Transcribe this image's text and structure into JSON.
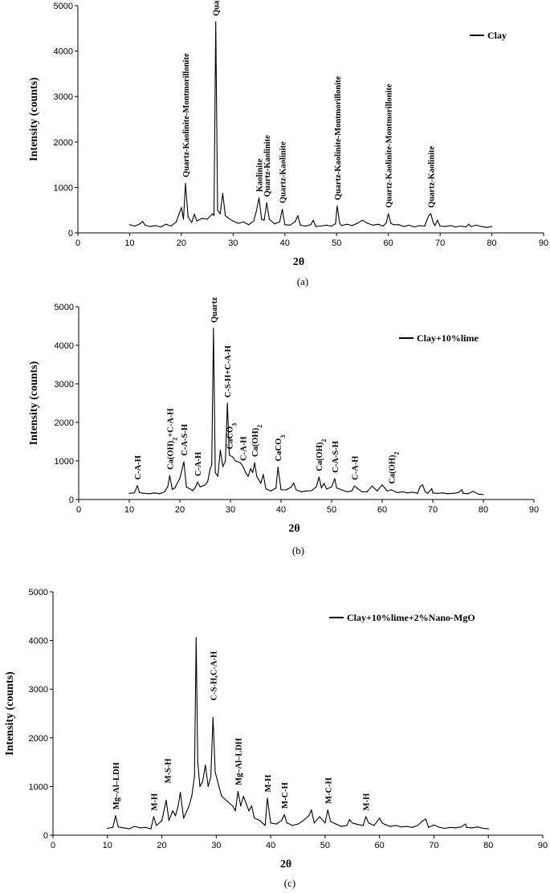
{
  "chart_data": [
    {
      "type": "line",
      "panel_caption": "(a)",
      "xlabel": "2θ",
      "ylabel": "Intensity (counts)",
      "xlim": [
        0,
        90
      ],
      "ylim": [
        0,
        5000
      ],
      "xticks": [
        0,
        10,
        20,
        30,
        40,
        50,
        60,
        70,
        80,
        90
      ],
      "yticks": [
        0,
        1000,
        2000,
        3000,
        4000,
        5000
      ],
      "legend_position": "top-right",
      "grid": false,
      "series": [
        {
          "name": "Clay",
          "x": [
            10,
            11,
            12,
            12.5,
            13,
            14,
            15,
            16,
            17,
            18,
            19,
            19.5,
            20,
            20.4,
            20.8,
            21.3,
            22,
            22.5,
            23,
            24,
            25,
            26,
            26.3,
            26.65,
            27,
            27.5,
            28,
            28.5,
            29,
            30,
            31,
            32,
            33,
            34,
            34.5,
            35,
            35.5,
            36,
            36.5,
            37,
            38,
            39,
            39.5,
            40,
            41,
            42,
            42.5,
            43,
            44,
            45,
            45.5,
            46,
            47,
            48,
            49,
            49.8,
            50.1,
            50.6,
            51,
            52,
            53,
            54,
            55,
            56,
            57,
            58,
            59,
            59.6,
            60,
            60.5,
            61,
            62,
            63,
            64,
            65,
            66,
            67,
            67.8,
            68.2,
            68.7,
            69,
            69.5,
            70,
            71,
            72,
            73,
            74,
            75,
            75.5,
            76,
            77,
            78,
            79,
            80
          ],
          "y": [
            180,
            150,
            200,
            250,
            170,
            140,
            160,
            130,
            190,
            150,
            240,
            400,
            560,
            300,
            1090,
            350,
            230,
            410,
            260,
            320,
            300,
            420,
            380,
            4640,
            500,
            420,
            870,
            380,
            330,
            260,
            210,
            240,
            180,
            260,
            480,
            770,
            300,
            280,
            660,
            300,
            200,
            240,
            520,
            180,
            170,
            250,
            380,
            170,
            150,
            180,
            280,
            140,
            150,
            170,
            150,
            200,
            590,
            210,
            160,
            190,
            160,
            210,
            280,
            210,
            170,
            190,
            150,
            220,
            420,
            210,
            180,
            180,
            140,
            170,
            130,
            160,
            150,
            380,
            420,
            220,
            160,
            280,
            150,
            140,
            160,
            130,
            150,
            130,
            190,
            140,
            170,
            140,
            120,
            140
          ]
        }
      ],
      "annotations": [
        {
          "text": "Quartz-Kaolinite-Montmorillonite",
          "x": 20.8,
          "y": 1150
        },
        {
          "text": "Quartz",
          "x": 26.65,
          "y": 4700
        },
        {
          "text": "Kaolinite",
          "x": 35.0,
          "y": 830
        },
        {
          "text": "Quartz-Kaolinite",
          "x": 36.5,
          "y": 720
        },
        {
          "text": "Quartz-Kaolinite",
          "x": 39.5,
          "y": 580
        },
        {
          "text": "Quartz-Kaolinite-Montmorillonite",
          "x": 50.1,
          "y": 650
        },
        {
          "text": "Quartz-Kaolinite-Montmorillonite",
          "x": 60.0,
          "y": 480
        },
        {
          "text": "Quartz-Kaolinite",
          "x": 68.2,
          "y": 480
        }
      ]
    },
    {
      "type": "line",
      "panel_caption": "(b)",
      "xlabel": "2θ",
      "ylabel": "Intensity (counts)",
      "xlim": [
        0,
        90
      ],
      "ylim": [
        0,
        5000
      ],
      "xticks": [
        0,
        10,
        20,
        30,
        40,
        50,
        60,
        70,
        80,
        90
      ],
      "yticks": [
        0,
        1000,
        2000,
        3000,
        4000,
        5000
      ],
      "legend_position": "top-right",
      "grid": false,
      "series": [
        {
          "name": "Clay+10%lime",
          "x": [
            10,
            11,
            11.6,
            12,
            13,
            14,
            15,
            16,
            17,
            17.6,
            18,
            18.5,
            19,
            20,
            20.8,
            21.3,
            22,
            22.5,
            23,
            23.5,
            24,
            25,
            25.5,
            26,
            26.3,
            26.65,
            27,
            27.5,
            28,
            28.5,
            29,
            29.4,
            29.8,
            30.5,
            31,
            32,
            32.5,
            33,
            33.5,
            34,
            34.4,
            34.8,
            35.2,
            36,
            36.5,
            37,
            38,
            39,
            39.4,
            40,
            41,
            42,
            42.5,
            43,
            44,
            45,
            46,
            47,
            47.5,
            48,
            48.5,
            49,
            50,
            50.6,
            51,
            52,
            53,
            54,
            54.5,
            55,
            56,
            57,
            58,
            59,
            60,
            60.5,
            61,
            61.8,
            63,
            64,
            65,
            66,
            67,
            67.5,
            68,
            68.5,
            69,
            69.8,
            70,
            71,
            72,
            73,
            74,
            75,
            75.8,
            76,
            77,
            78,
            79,
            80
          ],
          "y": [
            160,
            170,
            360,
            180,
            160,
            150,
            170,
            150,
            200,
            330,
            620,
            260,
            300,
            550,
            980,
            320,
            280,
            230,
            300,
            450,
            330,
            380,
            460,
            800,
            900,
            4440,
            700,
            600,
            1280,
            850,
            1000,
            2500,
            1150,
            1100,
            1000,
            950,
            850,
            700,
            600,
            800,
            700,
            950,
            600,
            420,
            650,
            280,
            220,
            300,
            840,
            250,
            250,
            320,
            430,
            250,
            200,
            220,
            230,
            330,
            580,
            300,
            420,
            270,
            330,
            540,
            300,
            250,
            200,
            220,
            350,
            300,
            200,
            200,
            350,
            220,
            380,
            300,
            220,
            250,
            180,
            200,
            170,
            190,
            160,
            340,
            380,
            200,
            160,
            280,
            170,
            160,
            170,
            150,
            160,
            180,
            250,
            160,
            150,
            210,
            140,
            130
          ]
        }
      ],
      "annotations": [
        {
          "text": "C-A-H",
          "x": 11.6,
          "y": 430
        },
        {
          "text": "Ca(OH)2+C-A-H",
          "x": 18.0,
          "y": 690
        },
        {
          "text": "C-A-S-H",
          "x": 20.8,
          "y": 1050
        },
        {
          "text": "C-A-H",
          "x": 23.5,
          "y": 520
        },
        {
          "text": "Quartz",
          "x": 26.65,
          "y": 4500
        },
        {
          "text": "C-S-H+C-A-H",
          "x": 29.4,
          "y": 2560
        },
        {
          "text": "CaCO3",
          "x": 29.8,
          "y": 1220
        },
        {
          "text": "C-A-H",
          "x": 32.5,
          "y": 920
        },
        {
          "text": "Ca(OH)2",
          "x": 34.8,
          "y": 1020
        },
        {
          "text": "CaCO3",
          "x": 39.4,
          "y": 910
        },
        {
          "text": "Ca(OH)2",
          "x": 47.5,
          "y": 650
        },
        {
          "text": "C-A-S-H",
          "x": 50.6,
          "y": 610
        },
        {
          "text": "C-A-H",
          "x": 54.5,
          "y": 420
        },
        {
          "text": "Ca(OH)2",
          "x": 61.8,
          "y": 320
        }
      ]
    },
    {
      "type": "line",
      "panel_caption": "(c)",
      "xlabel": "2θ",
      "ylabel": "Intensity (counts)",
      "xlim": [
        0,
        90
      ],
      "ylim": [
        0,
        5000
      ],
      "xticks": [
        0,
        10,
        20,
        30,
        40,
        50,
        60,
        70,
        80,
        90
      ],
      "yticks": [
        0,
        1000,
        2000,
        3000,
        4000,
        5000
      ],
      "legend_position": "top-right",
      "grid": false,
      "series": [
        {
          "name": "Clay+10%lime+2%Nano-MgO",
          "x": [
            10,
            11,
            11.5,
            12,
            13,
            14,
            15,
            16,
            17,
            18,
            18.5,
            19,
            20,
            20.8,
            21.3,
            22,
            22.5,
            23,
            23.4,
            24,
            25,
            25.5,
            26,
            26.3,
            26.6,
            27,
            27.5,
            28,
            28.5,
            29,
            29.4,
            29.8,
            30.5,
            31,
            32,
            33,
            33.5,
            34,
            34.5,
            35,
            36,
            36.5,
            37,
            38,
            39,
            39.4,
            40,
            41,
            42,
            42.5,
            43,
            44,
            45,
            46,
            47,
            47.5,
            48,
            49,
            50,
            50.5,
            51,
            52,
            53,
            54,
            54.5,
            55,
            56,
            57,
            57.5,
            58,
            59,
            60,
            60.5,
            61,
            62,
            63,
            64,
            65,
            66,
            67,
            68,
            68.5,
            69,
            70,
            71,
            72,
            73,
            74,
            75,
            75.8,
            76,
            77,
            78,
            79,
            80
          ],
          "y": [
            140,
            160,
            400,
            170,
            150,
            130,
            180,
            150,
            160,
            130,
            380,
            200,
            300,
            720,
            300,
            500,
            400,
            600,
            880,
            350,
            600,
            800,
            1200,
            4060,
            1500,
            1000,
            1100,
            1440,
            1000,
            1200,
            2420,
            1300,
            1000,
            800,
            700,
            600,
            500,
            900,
            600,
            800,
            500,
            600,
            350,
            300,
            200,
            760,
            250,
            230,
            300,
            420,
            250,
            200,
            230,
            300,
            400,
            520,
            250,
            380,
            250,
            520,
            280,
            230,
            180,
            200,
            320,
            250,
            220,
            200,
            380,
            250,
            200,
            350,
            250,
            220,
            180,
            200,
            170,
            180,
            160,
            200,
            300,
            330,
            160,
            210,
            160,
            140,
            160,
            150,
            170,
            230,
            160,
            150,
            170,
            140,
            130
          ]
        }
      ],
      "annotations": [
        {
          "text": "Mg–Al–LDH",
          "x": 11.5,
          "y": 460
        },
        {
          "text": "M-H",
          "x": 18.5,
          "y": 440
        },
        {
          "text": "M-S-H",
          "x": 21.0,
          "y": 1000
        },
        {
          "text": "C-S-H,C-A-H",
          "x": 29.4,
          "y": 2700
        },
        {
          "text": "Mg–Al–LDH",
          "x": 34.0,
          "y": 960
        },
        {
          "text": "M-H",
          "x": 39.4,
          "y": 820
        },
        {
          "text": "M-C-H",
          "x": 42.5,
          "y": 480
        },
        {
          "text": "M-C-H",
          "x": 50.5,
          "y": 580
        },
        {
          "text": "M-H",
          "x": 57.5,
          "y": 440
        }
      ]
    }
  ]
}
